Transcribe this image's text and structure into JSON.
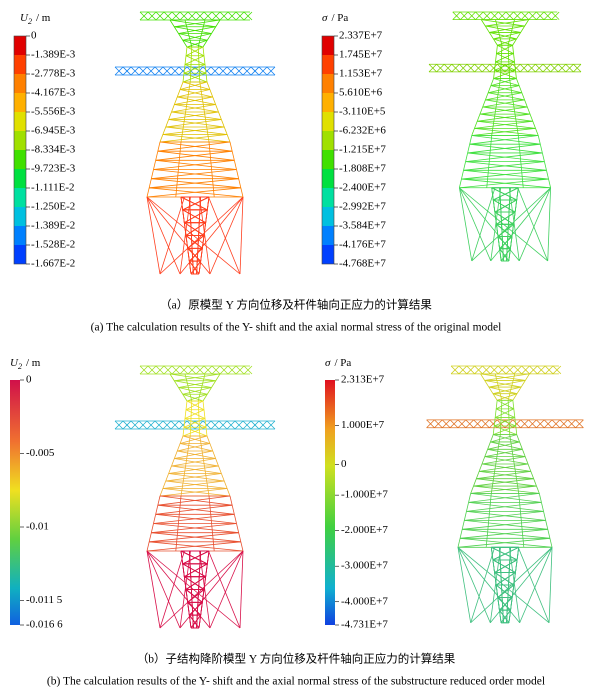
{
  "panel_a": {
    "legend_left": {
      "symbol": "U",
      "subscript": "2",
      "unit": "/ m",
      "labels": [
        "0",
        "-1.389E-3",
        "-2.778E-3",
        "-4.167E-3",
        "-5.556E-3",
        "-6.945E-3",
        "-8.334E-3",
        "-9.723E-3",
        "-1.111E-2",
        "-1.250E-2",
        "-1.389E-2",
        "-1.528E-2",
        "-1.667E-2"
      ]
    },
    "legend_right": {
      "symbol": "σ",
      "unit": "/ Pa",
      "labels": [
        "2.337E+7",
        "1.745E+7",
        "1.153E+7",
        "5.610E+6",
        "-3.110E+5",
        "-6.232E+6",
        "-1.215E+7",
        "-1.808E+7",
        "-2.400E+7",
        "-2.992E+7",
        "-3.584E+7",
        "-4.176E+7",
        "-4.768E+7"
      ]
    },
    "caption_zh": "（a）原模型 Y 方向位移及杆件轴向正应力的计算结果",
    "caption_en": "(a) The calculation results of the Y- shift and the axial normal stress of the original model"
  },
  "panel_b": {
    "legend_left": {
      "symbol": "U",
      "subscript": "2",
      "unit": "/ m",
      "labels": [
        "0",
        "-0.005",
        "-0.01",
        "-0.011 5",
        "-0.016 6"
      ]
    },
    "legend_right": {
      "symbol": "σ",
      "unit": "/ Pa",
      "labels": [
        "2.313E+7",
        "1.000E+7",
        "0",
        "-1.000E+7",
        "-2.000E+7",
        "-3.000E+7",
        "-4.000E+7",
        "-4.731E+7"
      ]
    },
    "caption_zh": "（b）子结构降阶模型 Y 方向位移及杆件轴向正应力的计算结果",
    "caption_en": "(b) The calculation results of the Y- shift and the axial normal stress of the substructure reduced order model"
  }
}
